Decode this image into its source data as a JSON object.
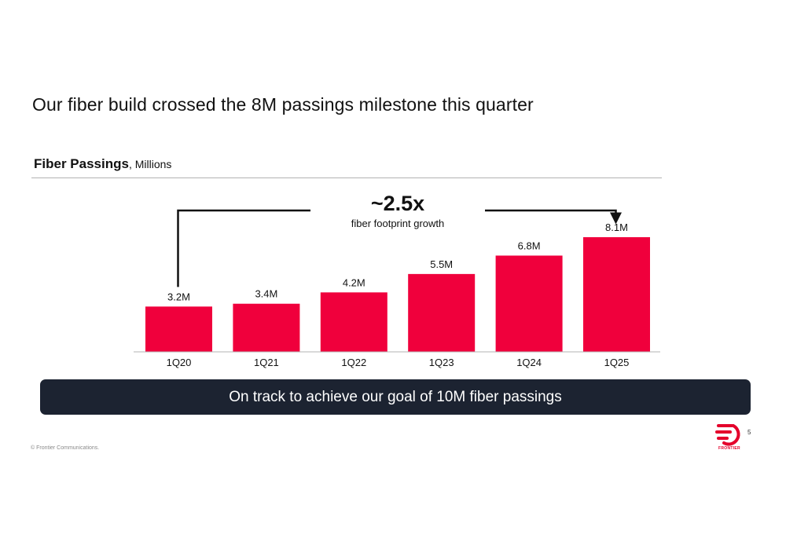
{
  "slide": {
    "title": "Our fiber build crossed the 8M passings milestone this quarter",
    "heading_bold": "Fiber Passings",
    "heading_unit": ", Millions",
    "callout": "On track to achieve our goal of 10M fiber passings",
    "copyright": "© Frontier Communications.",
    "page_number": "5",
    "logo_text": "FRONTIER"
  },
  "colors": {
    "bar": "#f0003c",
    "banner": "#1c2331",
    "text": "#111111"
  },
  "chart_data": {
    "type": "bar",
    "categories": [
      "1Q20",
      "1Q21",
      "1Q22",
      "1Q23",
      "1Q24",
      "1Q25"
    ],
    "values": [
      3.2,
      3.4,
      4.2,
      5.5,
      6.8,
      8.1
    ],
    "data_labels": [
      "3.2M",
      "3.4M",
      "4.2M",
      "5.5M",
      "6.8M",
      "8.1M"
    ],
    "ylim": [
      0,
      8.1
    ],
    "grid": false,
    "annotation": {
      "headline": "~2.5x",
      "subtext": "fiber footprint growth",
      "from": "1Q20",
      "to": "1Q25"
    }
  }
}
